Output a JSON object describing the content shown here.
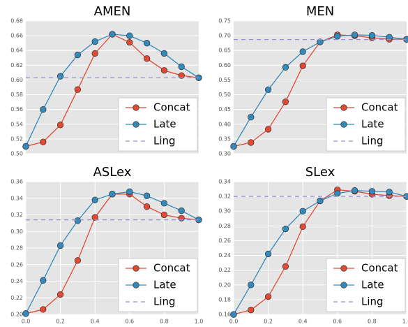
{
  "chart_data": [
    {
      "type": "line",
      "title": "AMEN",
      "x": [
        0,
        0.1,
        0.2,
        0.3,
        0.4,
        0.5,
        0.6,
        0.7,
        0.8,
        0.9,
        1
      ],
      "series": [
        {
          "name": "Concat",
          "color": "#e24a33",
          "marker": true,
          "values": [
            0.51,
            0.516,
            0.539,
            0.587,
            0.636,
            0.662,
            0.651,
            0.629,
            0.613,
            0.606,
            0.603
          ]
        },
        {
          "name": "Late",
          "color": "#348abd",
          "marker": true,
          "values": [
            0.51,
            0.56,
            0.605,
            0.634,
            0.652,
            0.662,
            0.66,
            0.65,
            0.636,
            0.618,
            0.603
          ]
        },
        {
          "name": "Ling",
          "color": "#988ed5",
          "marker": false,
          "dashed": true,
          "values": [
            0.603,
            0.603,
            0.603,
            0.603,
            0.603,
            0.603,
            0.603,
            0.603,
            0.603,
            0.603,
            0.603
          ]
        }
      ],
      "xlim": [
        0,
        1
      ],
      "ylim": [
        0.5,
        0.68
      ],
      "yticks": [
        {
          "value": 0.5,
          "label": "0.50"
        },
        0.52,
        0.54,
        0.56,
        0.58,
        {
          "value": 0.6,
          "label": "0.60"
        },
        0.62,
        0.64,
        0.66,
        0.68
      ],
      "grid": true,
      "legend": "lower right"
    },
    {
      "type": "line",
      "title": "MEN",
      "x": [
        0,
        0.1,
        0.2,
        0.3,
        0.4,
        0.5,
        0.6,
        0.7,
        0.8,
        0.9,
        1
      ],
      "series": [
        {
          "name": "Concat",
          "color": "#e24a33",
          "marker": true,
          "values": [
            0.325,
            0.338,
            0.383,
            0.476,
            0.598,
            0.679,
            0.703,
            0.7,
            0.693,
            0.688,
            0.688
          ]
        },
        {
          "name": "Late",
          "color": "#348abd",
          "marker": true,
          "values": [
            0.325,
            0.424,
            0.517,
            0.593,
            0.646,
            0.679,
            0.698,
            0.703,
            0.701,
            0.695,
            0.688
          ]
        },
        {
          "name": "Ling",
          "color": "#988ed5",
          "marker": false,
          "dashed": true,
          "values": [
            0.687,
            0.687,
            0.687,
            0.687,
            0.687,
            0.687,
            0.687,
            0.687,
            0.687,
            0.687,
            0.687
          ]
        }
      ],
      "xlim": [
        0,
        1
      ],
      "ylim": [
        0.3,
        0.75
      ],
      "yticks": [
        {
          "value": 0.3,
          "label": "0.30"
        },
        0.35,
        {
          "value": 0.4,
          "label": "0.40"
        },
        0.45,
        {
          "value": 0.5,
          "label": "0.50"
        },
        0.55,
        {
          "value": 0.6,
          "label": "0.60"
        },
        0.65,
        {
          "value": 0.7,
          "label": "0.70"
        },
        0.75
      ],
      "grid": true,
      "legend": "lower right"
    },
    {
      "type": "line",
      "title": "ASLex",
      "x": [
        0,
        0.1,
        0.2,
        0.3,
        0.4,
        0.5,
        0.6,
        0.7,
        0.8,
        0.9,
        1
      ],
      "series": [
        {
          "name": "Concat",
          "color": "#e24a33",
          "marker": true,
          "values": [
            0.201,
            0.206,
            0.224,
            0.265,
            0.317,
            0.345,
            0.345,
            0.33,
            0.32,
            0.316,
            0.314
          ]
        },
        {
          "name": "Late",
          "color": "#348abd",
          "marker": true,
          "values": [
            0.201,
            0.241,
            0.283,
            0.313,
            0.338,
            0.345,
            0.348,
            0.343,
            0.334,
            0.325,
            0.314
          ]
        },
        {
          "name": "Ling",
          "color": "#988ed5",
          "marker": false,
          "dashed": true,
          "values": [
            0.314,
            0.314,
            0.314,
            0.314,
            0.314,
            0.314,
            0.314,
            0.314,
            0.314,
            0.314,
            0.314
          ]
        }
      ],
      "xlim": [
        0,
        1
      ],
      "ylim": [
        0.2,
        0.36
      ],
      "xticks": [
        {
          "value": 0,
          "label": "0.0"
        },
        0.2,
        0.4,
        0.6,
        0.8,
        {
          "value": 1,
          "label": "1.0"
        }
      ],
      "yticks": [
        {
          "value": 0.2,
          "label": "0.20"
        },
        0.22,
        0.24,
        0.26,
        0.28,
        {
          "value": 0.3,
          "label": "0.30"
        },
        0.32,
        0.34,
        0.36
      ],
      "grid": true,
      "legend": "lower right"
    },
    {
      "type": "line",
      "title": "SLex",
      "x": [
        0,
        0.1,
        0.2,
        0.3,
        0.4,
        0.5,
        0.6,
        0.7,
        0.8,
        0.9,
        1
      ],
      "series": [
        {
          "name": "Concat",
          "color": "#e24a33",
          "marker": true,
          "values": [
            0.16,
            0.166,
            0.184,
            0.225,
            0.279,
            0.314,
            0.329,
            0.327,
            0.323,
            0.321,
            0.32
          ]
        },
        {
          "name": "Late",
          "color": "#348abd",
          "marker": true,
          "values": [
            0.16,
            0.2,
            0.242,
            0.276,
            0.3,
            0.314,
            0.324,
            0.328,
            0.327,
            0.326,
            0.32
          ]
        },
        {
          "name": "Ling",
          "color": "#988ed5",
          "marker": false,
          "dashed": true,
          "values": [
            0.32,
            0.32,
            0.32,
            0.32,
            0.32,
            0.32,
            0.32,
            0.32,
            0.32,
            0.32,
            0.32
          ]
        }
      ],
      "xlim": [
        0,
        1
      ],
      "ylim": [
        0.16,
        0.34
      ],
      "xticks": [
        {
          "value": 0,
          "label": "0.0"
        },
        0.2,
        0.4,
        0.6,
        0.8,
        {
          "value": 1,
          "label": "1.0"
        }
      ],
      "yticks": [
        0.16,
        0.18,
        {
          "value": 0.2,
          "label": "0.20"
        },
        0.22,
        0.24,
        0.26,
        0.28,
        {
          "value": 0.3,
          "label": "0.30"
        },
        0.32,
        0.34
      ],
      "grid": true,
      "legend": "lower right"
    }
  ]
}
